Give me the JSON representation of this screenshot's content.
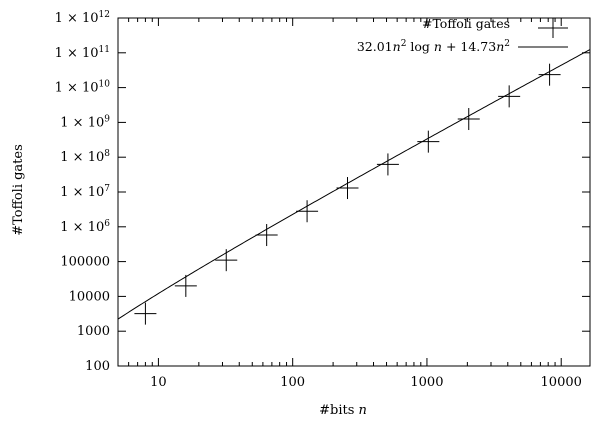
{
  "chart_data": {
    "type": "scatter",
    "title": "",
    "xlabel": "#bits n",
    "ylabel": "#Toffoli gates",
    "x_scale": "log",
    "y_scale": "log",
    "xlim": [
      5,
      16384
    ],
    "ylim": [
      100,
      1000000000000
    ],
    "grid": false,
    "legend_position": "top-right",
    "x_ticks": [
      {
        "value": 10,
        "label": "10"
      },
      {
        "value": 100,
        "label": "100"
      },
      {
        "value": 1000,
        "label": "1000"
      },
      {
        "value": 10000,
        "label": "10000"
      }
    ],
    "y_ticks": [
      {
        "value": 100,
        "label": "100"
      },
      {
        "value": 1000,
        "label": "1000"
      },
      {
        "value": 10000,
        "label": "10000"
      },
      {
        "value": 100000,
        "label": "100000"
      },
      {
        "value": 1000000,
        "label": "1 × 10",
        "sup": "6"
      },
      {
        "value": 10000000,
        "label": "1 × 10",
        "sup": "7"
      },
      {
        "value": 100000000,
        "label": "1 × 10",
        "sup": "8"
      },
      {
        "value": 1000000000,
        "label": "1 × 10",
        "sup": "9"
      },
      {
        "value": 10000000000,
        "label": "1 × 10",
        "sup": "10"
      },
      {
        "value": 100000000000,
        "label": "1 × 10",
        "sup": "11"
      },
      {
        "value": 1000000000000,
        "label": "1 × 10",
        "sup": "12"
      }
    ],
    "series": [
      {
        "name": "#Toffoli gates",
        "kind": "points",
        "marker": "plus",
        "x": [
          8,
          16,
          32,
          64,
          128,
          256,
          512,
          1024,
          2048,
          4096,
          8192
        ],
        "y": [
          3200,
          20000,
          110000,
          580000,
          2800000,
          13000000,
          62000000,
          280000000,
          1250000000,
          5600000000,
          23500000000
        ]
      },
      {
        "name": "32.01n² log n + 14.73n²",
        "kind": "line",
        "formula": {
          "a": 32.01,
          "b": 14.73,
          "log_base": 2
        }
      }
    ]
  }
}
